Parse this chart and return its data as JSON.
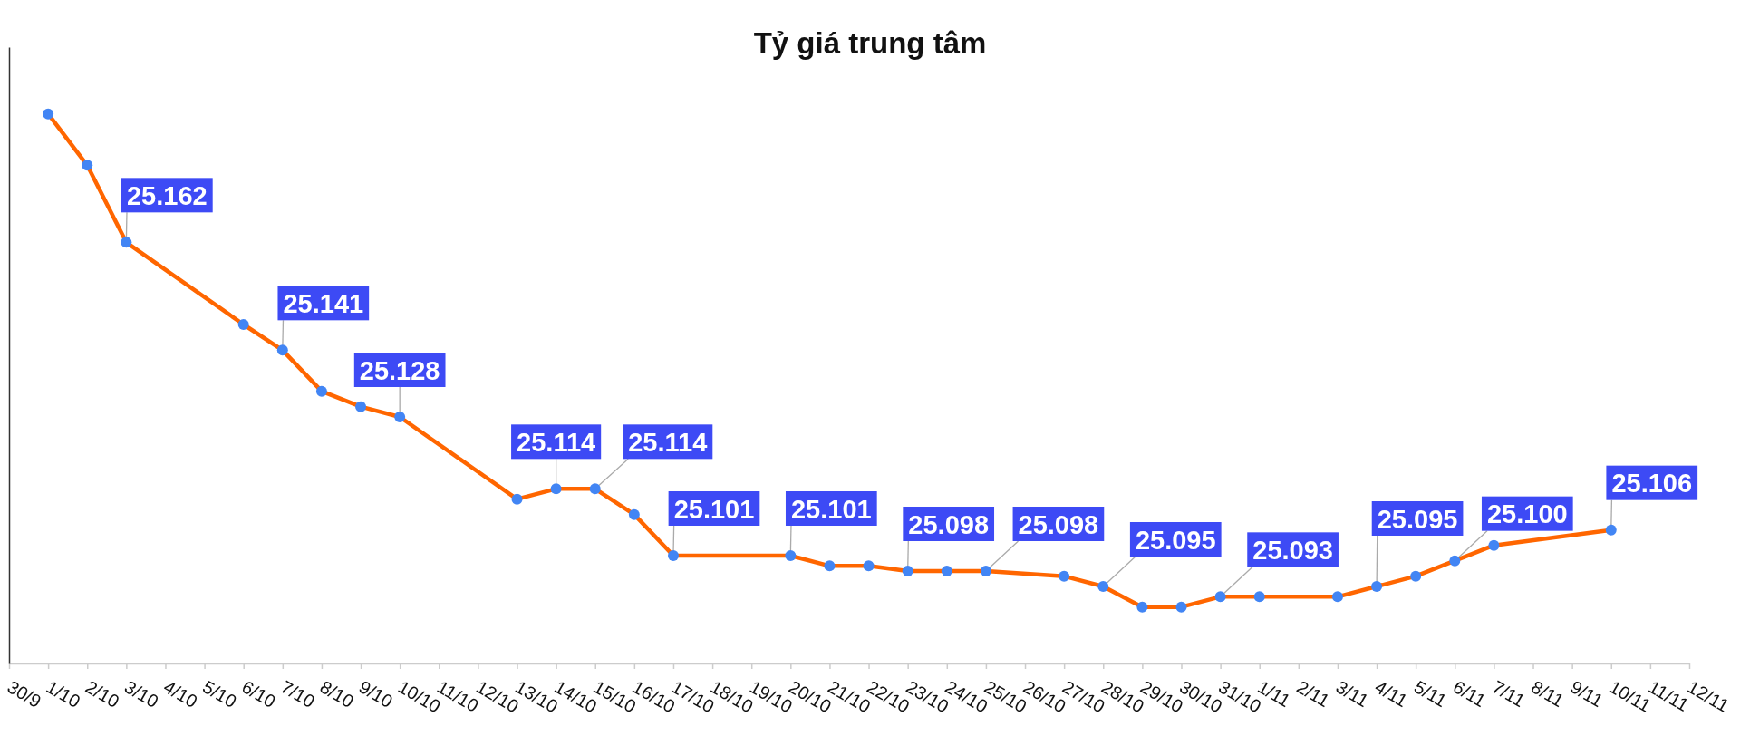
{
  "chart_data": {
    "type": "line",
    "title": "Tỷ giá trung tâm",
    "tick_labels": "x",
    "marker": "circle",
    "line_style": "solid",
    "xlim": [
      "--09-30",
      "--11-12"
    ],
    "xticks": [
      {
        "value": "--09-30",
        "label": "30/9"
      },
      {
        "value": "--10-01",
        "label": "1/10"
      },
      {
        "value": "--10-02",
        "label": "2/10"
      },
      {
        "value": "--10-03",
        "label": "3/10"
      },
      {
        "value": "--10-04",
        "label": "4/10"
      },
      {
        "value": "--10-05",
        "label": "5/10"
      },
      {
        "value": "--10-06",
        "label": "6/10"
      },
      {
        "value": "--10-07",
        "label": "7/10"
      },
      {
        "value": "--10-08",
        "label": "8/10"
      },
      {
        "value": "--10-09",
        "label": "9/10"
      },
      {
        "value": "--10-10",
        "label": "10/10"
      },
      {
        "value": "--10-11",
        "label": "11/10"
      },
      {
        "value": "--10-12",
        "label": "12/10"
      },
      {
        "value": "--10-13",
        "label": "13/10"
      },
      {
        "value": "--10-14",
        "label": "14/10"
      },
      {
        "value": "--10-15",
        "label": "15/10"
      },
      {
        "value": "--10-16",
        "label": "16/10"
      },
      {
        "value": "--10-17",
        "label": "17/10"
      },
      {
        "value": "--10-18",
        "label": "18/10"
      },
      {
        "value": "--10-19",
        "label": "19/10"
      },
      {
        "value": "--10-20",
        "label": "20/10"
      },
      {
        "value": "--10-21",
        "label": "21/10"
      },
      {
        "value": "--10-22",
        "label": "22/10"
      },
      {
        "value": "--10-23",
        "label": "23/10"
      },
      {
        "value": "--10-24",
        "label": "24/10"
      },
      {
        "value": "--10-25",
        "label": "25/10"
      },
      {
        "value": "--10-26",
        "label": "26/10"
      },
      {
        "value": "--10-27",
        "label": "27/10"
      },
      {
        "value": "--10-28",
        "label": "28/10"
      },
      {
        "value": "--10-29",
        "label": "29/10"
      },
      {
        "value": "--10-30",
        "label": "30/10"
      },
      {
        "value": "--10-31",
        "label": "31/10"
      },
      {
        "value": "--11-01",
        "label": "1/11"
      },
      {
        "value": "--11-02",
        "label": "2/11"
      },
      {
        "value": "--11-03",
        "label": "3/11"
      },
      {
        "value": "--11-04",
        "label": "4/11"
      },
      {
        "value": "--11-05",
        "label": "5/11"
      },
      {
        "value": "--11-06",
        "label": "6/11"
      },
      {
        "value": "--11-07",
        "label": "7/11"
      },
      {
        "value": "--11-08",
        "label": "8/11"
      },
      {
        "value": "--11-09",
        "label": "9/11"
      },
      {
        "value": "--11-10",
        "label": "10/11"
      },
      {
        "value": "--11-11",
        "label": "11/11"
      },
      {
        "value": "--11-12",
        "label": "12/11"
      }
    ],
    "ylim": [
      25.08,
      25.2
    ],
    "series": [
      {
        "color": "#ff6600",
        "x": [
          "--10-01",
          "--10-02",
          "--10-03",
          "--10-06",
          "--10-07",
          "--10-08",
          "--10-09",
          "--10-10",
          "--10-13",
          "--10-14",
          "--10-15",
          "--10-16",
          "--10-17",
          "--10-20",
          "--10-21",
          "--10-22",
          "--10-23",
          "--10-24",
          "--10-25",
          "--10-27",
          "--10-28",
          "--10-29",
          "--10-30",
          "--10-31",
          "--11-01",
          "--11-03",
          "--11-04",
          "--11-05",
          "--11-06",
          "--11-07",
          "--11-10"
        ],
        "values": [
          25.187,
          25.177,
          25.162,
          25.146,
          25.141,
          25.133,
          25.13,
          25.128,
          25.112,
          25.114,
          25.114,
          25.109,
          25.101,
          25.101,
          25.099,
          25.099,
          25.098,
          25.098,
          25.098,
          25.097,
          25.095,
          25.091,
          25.091,
          25.093,
          25.093,
          25.093,
          25.095,
          25.097,
          25.1,
          25.103,
          25.106
        ],
        "value_labels": [
          null,
          null,
          "25.162",
          null,
          "25.141",
          null,
          null,
          "25.128",
          null,
          "25.114",
          "25.114",
          null,
          "25.101",
          "25.101",
          null,
          null,
          "25.098",
          null,
          "25.098",
          null,
          "25.095",
          null,
          null,
          "25.093",
          null,
          null,
          "25.095",
          null,
          "25.100",
          null,
          "25.106"
        ]
      }
    ]
  }
}
